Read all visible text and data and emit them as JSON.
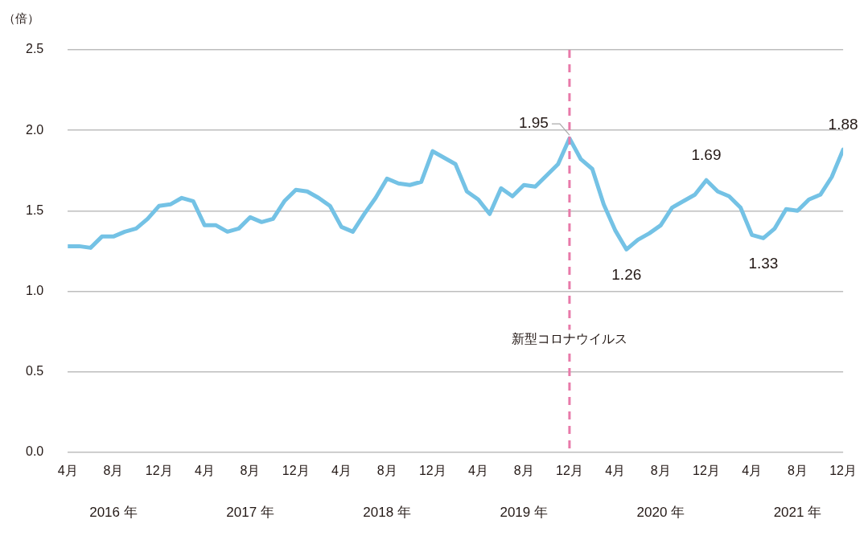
{
  "chart_data": {
    "type": "line",
    "ylabel": "（倍）",
    "x": [
      "2016-04",
      "2016-05",
      "2016-06",
      "2016-07",
      "2016-08",
      "2016-09",
      "2016-10",
      "2016-11",
      "2016-12",
      "2017-01",
      "2017-02",
      "2017-03",
      "2017-04",
      "2017-05",
      "2017-06",
      "2017-07",
      "2017-08",
      "2017-09",
      "2017-10",
      "2017-11",
      "2017-12",
      "2018-01",
      "2018-02",
      "2018-03",
      "2018-04",
      "2018-05",
      "2018-06",
      "2018-07",
      "2018-08",
      "2018-09",
      "2018-10",
      "2018-11",
      "2018-12",
      "2019-01",
      "2019-02",
      "2019-03",
      "2019-04",
      "2019-05",
      "2019-06",
      "2019-07",
      "2019-08",
      "2019-09",
      "2019-10",
      "2019-11",
      "2019-12",
      "2020-01",
      "2020-02",
      "2020-03",
      "2020-04",
      "2020-05",
      "2020-06",
      "2020-07",
      "2020-08",
      "2020-09",
      "2020-10",
      "2020-11",
      "2020-12",
      "2021-01",
      "2021-02",
      "2021-03",
      "2021-04",
      "2021-05",
      "2021-06",
      "2021-07",
      "2021-08",
      "2021-09",
      "2021-10",
      "2021-11",
      "2021-12"
    ],
    "series": [
      {
        "color": "#74c2e5",
        "values": [
          1.28,
          1.28,
          1.27,
          1.34,
          1.34,
          1.37,
          1.39,
          1.45,
          1.53,
          1.54,
          1.58,
          1.56,
          1.41,
          1.41,
          1.37,
          1.39,
          1.46,
          1.43,
          1.45,
          1.56,
          1.63,
          1.62,
          1.58,
          1.53,
          1.4,
          1.37,
          1.48,
          1.58,
          1.7,
          1.67,
          1.66,
          1.68,
          1.87,
          1.83,
          1.79,
          1.62,
          1.57,
          1.48,
          1.64,
          1.59,
          1.66,
          1.65,
          1.72,
          1.79,
          1.95,
          1.82,
          1.76,
          1.54,
          1.38,
          1.26,
          1.32,
          1.36,
          1.41,
          1.52,
          1.56,
          1.6,
          1.69,
          1.62,
          1.59,
          1.52,
          1.35,
          1.33,
          1.39,
          1.51,
          1.5,
          1.57,
          1.6,
          1.71,
          1.88
        ],
        "value_labels": [
          null,
          null,
          null,
          null,
          null,
          null,
          null,
          null,
          null,
          null,
          null,
          null,
          null,
          null,
          null,
          null,
          null,
          null,
          null,
          null,
          null,
          null,
          null,
          null,
          null,
          null,
          null,
          null,
          null,
          null,
          null,
          null,
          null,
          null,
          null,
          null,
          null,
          null,
          null,
          null,
          null,
          null,
          null,
          null,
          "1.95",
          null,
          null,
          null,
          null,
          "1.26",
          null,
          null,
          null,
          null,
          null,
          null,
          "1.69",
          null,
          null,
          null,
          null,
          "1.33",
          null,
          null,
          null,
          null,
          null,
          null,
          "1.88"
        ]
      }
    ],
    "xlim": [
      "2016-04",
      "2021-12"
    ],
    "xticks": [
      {
        "value": "2016-04",
        "label": "4月"
      },
      {
        "value": "2016-08",
        "label": "8月"
      },
      {
        "value": "2016-12",
        "label": "12月"
      },
      {
        "value": "2017-04",
        "label": "4月"
      },
      {
        "value": "2017-08",
        "label": "8月"
      },
      {
        "value": "2017-12",
        "label": "12月"
      },
      {
        "value": "2018-04",
        "label": "4月"
      },
      {
        "value": "2018-08",
        "label": "8月"
      },
      {
        "value": "2018-12",
        "label": "12月"
      },
      {
        "value": "2019-04",
        "label": "4月"
      },
      {
        "value": "2019-08",
        "label": "8月"
      },
      {
        "value": "2019-12",
        "label": "12月"
      },
      {
        "value": "2020-04",
        "label": "4月"
      },
      {
        "value": "2020-08",
        "label": "8月"
      },
      {
        "value": "2020-12",
        "label": "12月"
      },
      {
        "value": "2021-04",
        "label": "4月"
      },
      {
        "value": "2021-08",
        "label": "8月"
      },
      {
        "value": "2021-12",
        "label": "12月"
      }
    ],
    "ylim": [
      0,
      2.5
    ],
    "yticks": [
      {
        "value": 0,
        "label": "0.0"
      },
      {
        "value": 0.5,
        "label": "0.5"
      },
      {
        "value": 1,
        "label": "1.0"
      },
      {
        "value": 1.5,
        "label": "1.5"
      },
      {
        "value": 2,
        "label": "2.0"
      },
      {
        "value": 2.5,
        "label": "2.5"
      }
    ],
    "grid": "y",
    "legend": false,
    "marker": "none",
    "line_style": "solid",
    "ref_lines": [
      {
        "axis": "x",
        "value": "2019-12",
        "label": "新型コロナウイルス",
        "color": "#e87aa9",
        "line_style": "dashed"
      }
    ],
    "annotations": [
      "2016 年",
      "2017 年",
      "2018 年",
      "2019 年",
      "2020 年",
      "2021 年"
    ]
  }
}
